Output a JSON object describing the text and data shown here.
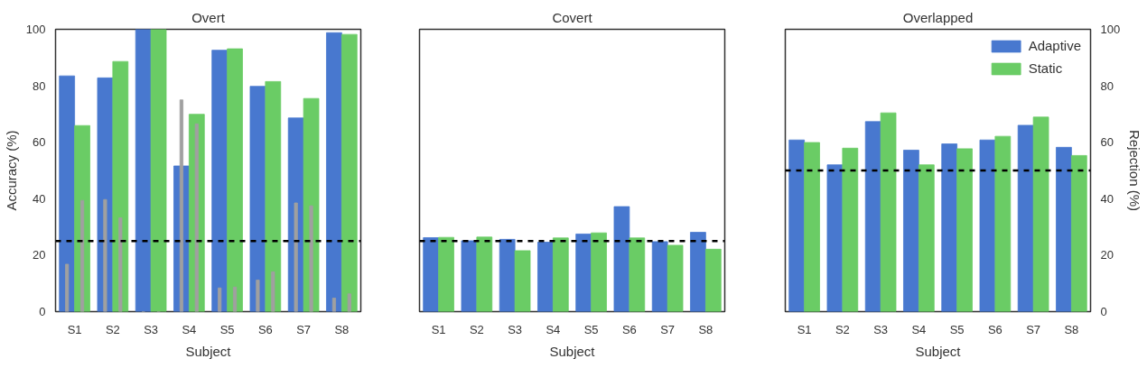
{
  "chart_data": [
    {
      "type": "bar",
      "title": "Overt",
      "xlabel": "Subject",
      "ylabel": "Accuracy (%)",
      "categories": [
        "S1",
        "S2",
        "S3",
        "S4",
        "S5",
        "S6",
        "S7",
        "S8"
      ],
      "ylim": [
        0,
        100
      ],
      "yticks": [
        0,
        20,
        40,
        60,
        80,
        100
      ],
      "grid": false,
      "series": [
        {
          "color": "#4878cf",
          "values": [
            83.5,
            82.8,
            100,
            51.6,
            92.6,
            79.8,
            68.6,
            98.8
          ]
        },
        {
          "color": "#6acc65",
          "values": [
            65.9,
            88.6,
            100,
            69.9,
            93.1,
            81.5,
            75.5,
            98.2
          ]
        },
        {
          "color": "#a0a0a0",
          "values": [
            16.8,
            39.7,
            0,
            75,
            8.4,
            11.2,
            38.5,
            4.8
          ]
        },
        {
          "color": "#a0a0a0",
          "values": [
            39.4,
            33.2,
            0,
            66.5,
            8.7,
            14.1,
            37.5,
            6.3
          ]
        }
      ],
      "ref_lines": [
        {
          "axis": "y",
          "value": 25,
          "color": "#000000",
          "line_style": "dashed"
        }
      ]
    },
    {
      "type": "bar",
      "title": "Covert",
      "xlabel": "Subject",
      "categories": [
        "S1",
        "S2",
        "S3",
        "S4",
        "S5",
        "S6",
        "S7",
        "S8"
      ],
      "ylim": [
        0,
        100
      ],
      "yticks": [
        0,
        20,
        40,
        60,
        80,
        100
      ],
      "tick_labels": "x",
      "grid": false,
      "series": [
        {
          "color": "#4878cf",
          "values": [
            26.2,
            25.1,
            25.6,
            24.6,
            27.5,
            37.2,
            24.8,
            28.1
          ]
        },
        {
          "color": "#6acc65",
          "values": [
            26.3,
            26.4,
            21.6,
            26.1,
            27.9,
            26.1,
            23.5,
            22.1
          ]
        }
      ],
      "ref_lines": [
        {
          "axis": "y",
          "value": 25,
          "color": "#000000",
          "line_style": "dashed"
        }
      ]
    },
    {
      "type": "bar",
      "title": "Overlapped",
      "xlabel": "Subject",
      "y2label": "Rejection (%)",
      "categories": [
        "S1",
        "S2",
        "S3",
        "S4",
        "S5",
        "S6",
        "S7",
        "S8"
      ],
      "y2lim": [
        0,
        100
      ],
      "y2ticks": [
        0,
        20,
        40,
        60,
        80,
        100
      ],
      "grid": false,
      "legend": "top right",
      "series": [
        {
          "name": "Adaptive",
          "color": "#4878cf",
          "axis": "y2",
          "values": [
            60.8,
            52.0,
            67.3,
            57.2,
            59.4,
            60.8,
            66.0,
            58.2
          ]
        },
        {
          "name": "Static",
          "color": "#6acc65",
          "axis": "y2",
          "values": [
            59.9,
            57.9,
            70.4,
            52.0,
            57.7,
            62.1,
            68.9,
            55.3
          ]
        }
      ],
      "ref_lines": [
        {
          "axis": "y2",
          "value": 50,
          "color": "#000000",
          "line_style": "dashed"
        }
      ]
    }
  ]
}
